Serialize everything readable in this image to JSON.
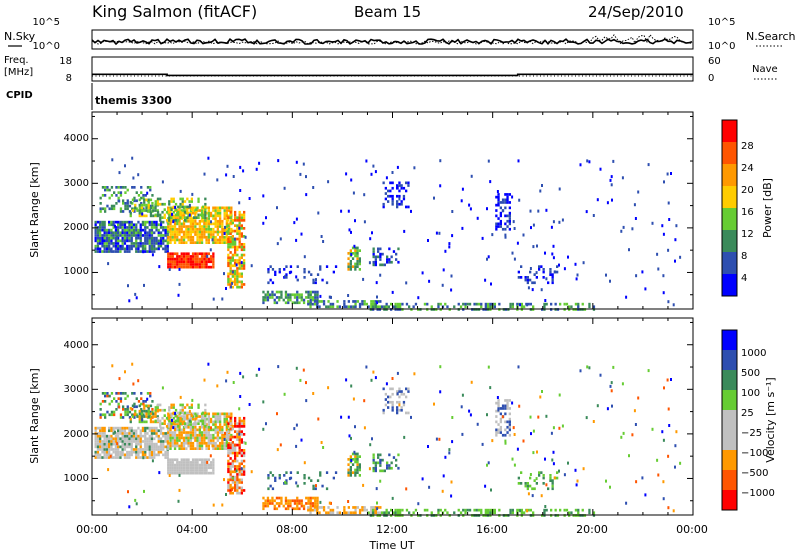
{
  "header": {
    "station": "King Salmon (fitACF)",
    "beam": "Beam 15",
    "date": "24/Sep/2010"
  },
  "side_labels": {
    "nsky": "N.Sky",
    "freq_line1": "Freq.",
    "freq_line2": "[MHz]",
    "cpid": "CPID",
    "nsearch": "N.Search",
    "nave": "Nave"
  },
  "cpid_value": "themis 3300",
  "colors": {
    "power_scale": [
      "#0000ff",
      "#2e4fb0",
      "#3a8a5a",
      "#66cc33",
      "#ffcc00",
      "#ff9900",
      "#ff5500",
      "#ff0000"
    ],
    "velocity_scale": [
      "#0000ff",
      "#2e4fb0",
      "#3a8a5a",
      "#66cc33",
      "#c0c0c0",
      "#c0c0c0",
      "#ff9900",
      "#ff5500",
      "#ff0000"
    ]
  },
  "chart_data": [
    {
      "type": "line",
      "panel": "nsky",
      "left_ticks": [
        "10^5",
        "10^0"
      ],
      "right_ticks": [
        "10^5",
        "10^0"
      ]
    },
    {
      "type": "line",
      "panel": "freq",
      "left_ticks": [
        "18",
        "8"
      ],
      "right_ticks": [
        "60",
        "0"
      ],
      "freq_steps": [
        {
          "x": 0,
          "y": 10.8
        },
        {
          "x": 3.0,
          "y": 10.3
        },
        {
          "x": 17.0,
          "y": 10.8
        },
        {
          "x": 24,
          "y": 10.8
        }
      ]
    },
    {
      "type": "heatmap",
      "panel": "power",
      "ylabel": "Slant Range [km]",
      "y_ticks": [
        "1000",
        "2000",
        "3000",
        "4000"
      ],
      "ylim": [
        180,
        4600
      ],
      "xlim": [
        0,
        24
      ],
      "colorbar_label": "Power [dB]",
      "colorbar_ticks": [
        "4",
        "8",
        "12",
        "16",
        "20",
        "24",
        "28"
      ]
    },
    {
      "type": "heatmap",
      "panel": "velocity",
      "ylabel": "Slant Range [km]",
      "y_ticks": [
        "1000",
        "2000",
        "3000",
        "4000"
      ],
      "ylim": [
        180,
        4600
      ],
      "xlim": [
        0,
        24
      ],
      "x_ticks": [
        "00:00",
        "04:00",
        "08:00",
        "12:00",
        "16:00",
        "20:00",
        "00:00"
      ],
      "xlabel": "Time UT",
      "colorbar_label": "Velocity [m s⁻¹]",
      "colorbar_ticks": [
        "1000",
        "500",
        "100",
        "25",
        "−25",
        "−100",
        "−500",
        "−1000"
      ]
    }
  ]
}
